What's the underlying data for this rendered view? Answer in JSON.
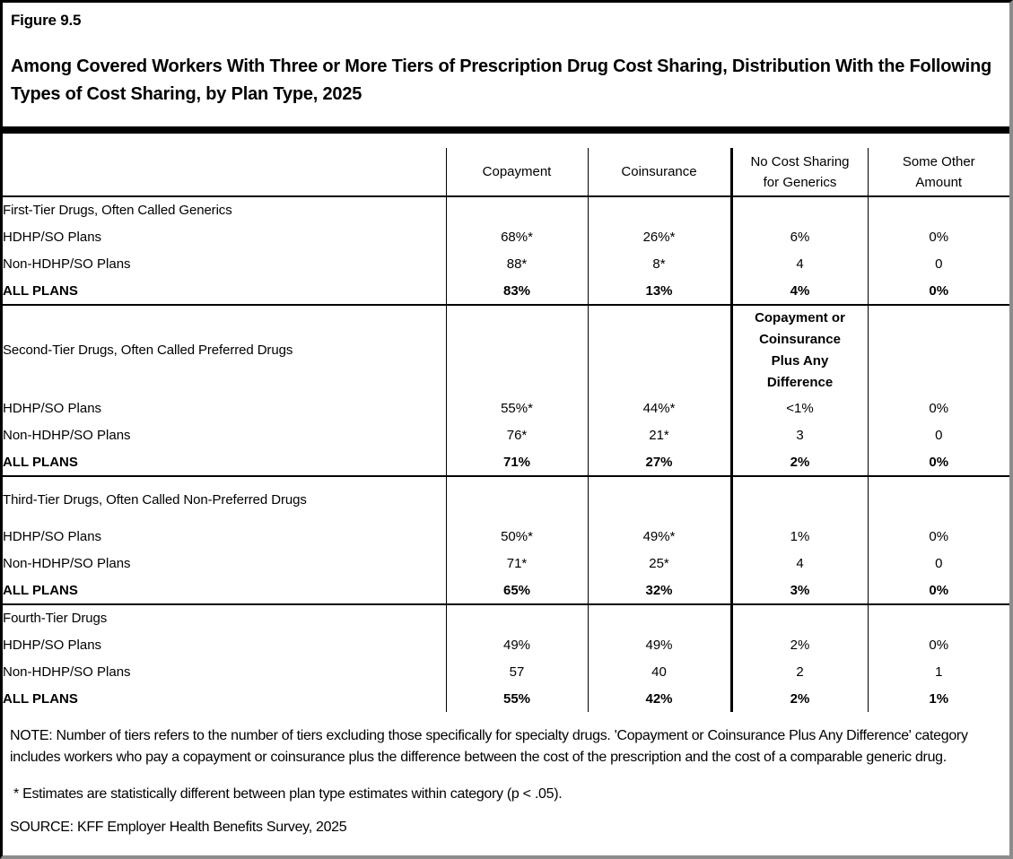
{
  "figure": {
    "label": "Figure 9.5",
    "title": "Among Covered Workers With Three or More Tiers of Prescription Drug Cost Sharing, Distribution With the Following Types of Cost Sharing, by Plan Type, 2025"
  },
  "table": {
    "columns": [
      "Copayment",
      "Coinsurance",
      "No Cost Sharing for Generics",
      "Some Other Amount"
    ],
    "sections": [
      {
        "header": "First-Tier Drugs, Often Called Generics",
        "sub_header_col3": "",
        "rows": [
          {
            "label": "HDHP/SO Plans",
            "values": [
              "68%*",
              "26%*",
              "6%",
              "0%"
            ],
            "bold": false
          },
          {
            "label": "Non-HDHP/SO Plans",
            "values": [
              "88*",
              "8*",
              "4",
              "0"
            ],
            "bold": false
          },
          {
            "label": "ALL PLANS",
            "values": [
              "83%",
              "13%",
              "4%",
              "0%"
            ],
            "bold": true
          }
        ]
      },
      {
        "header": "Second-Tier Drugs, Often Called Preferred Drugs",
        "sub_header_col3": "Copayment or Coinsurance Plus Any Difference",
        "rows": [
          {
            "label": "HDHP/SO Plans",
            "values": [
              "55%*",
              "44%*",
              "<1%",
              "0%"
            ],
            "bold": false
          },
          {
            "label": "Non-HDHP/SO Plans",
            "values": [
              "76*",
              "21*",
              "3",
              "0"
            ],
            "bold": false
          },
          {
            "label": "ALL PLANS",
            "values": [
              "71%",
              "27%",
              "2%",
              "0%"
            ],
            "bold": true
          }
        ]
      },
      {
        "header": "Third-Tier Drugs, Often Called Non-Preferred Drugs",
        "sub_header_col3": "",
        "rows": [
          {
            "label": "HDHP/SO Plans",
            "values": [
              "50%*",
              "49%*",
              "1%",
              "0%"
            ],
            "bold": false
          },
          {
            "label": "Non-HDHP/SO Plans",
            "values": [
              "71*",
              "25*",
              "4",
              "0"
            ],
            "bold": false
          },
          {
            "label": "ALL PLANS",
            "values": [
              "65%",
              "32%",
              "3%",
              "0%"
            ],
            "bold": true
          }
        ]
      },
      {
        "header": "Fourth-Tier Drugs",
        "sub_header_col3": "",
        "rows": [
          {
            "label": "HDHP/SO Plans",
            "values": [
              "49%",
              "49%",
              "2%",
              "0%"
            ],
            "bold": false
          },
          {
            "label": "Non-HDHP/SO Plans",
            "values": [
              "57",
              "40",
              "2",
              "1"
            ],
            "bold": false
          },
          {
            "label": "ALL PLANS",
            "values": [
              "55%",
              "42%",
              "2%",
              "1%"
            ],
            "bold": true
          }
        ]
      }
    ]
  },
  "notes": {
    "note": "NOTE: Number of tiers refers to the number of tiers excluding those specifically for specialty drugs. 'Copayment or Coinsurance Plus Any Difference' category includes workers who pay a copayment or coinsurance plus the difference between the cost of the prescription and the cost of a comparable generic drug.",
    "asterisk": "* Estimates are statistically different between plan type estimates within category (p < .05).",
    "source": "SOURCE: KFF Employer Health Benefits Survey, 2025"
  },
  "colors": {
    "text": "#000000",
    "background": "#ffffff",
    "rule": "#000000",
    "frame_shadow": "#8c8c8c"
  }
}
